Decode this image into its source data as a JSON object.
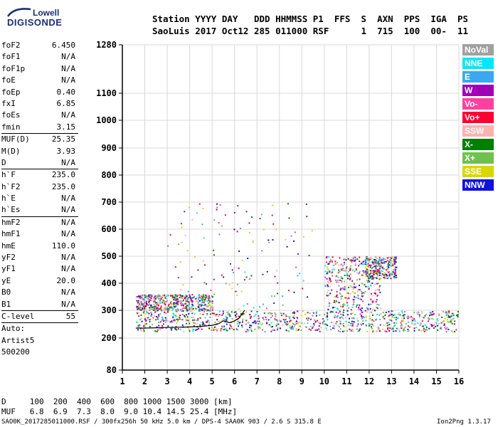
{
  "logo": {
    "line1": "Lowell",
    "line2": "DIGISONDE"
  },
  "header": {
    "line1": "Station YYYY DAY   DDD HHMMSS P1  FFS  S  AXN  PPS  IGA  PS",
    "line2": "SaoLuis 2017 Oct12 285 011000 RSF      1  715  100  00-  11"
  },
  "params": {
    "group1": [
      {
        "name": "foF2",
        "value": "6.450"
      },
      {
        "name": "foF1",
        "value": "N/A"
      },
      {
        "name": "foF1p",
        "value": "N/A"
      },
      {
        "name": "foE",
        "value": "N/A"
      },
      {
        "name": "foEp",
        "value": "0.40"
      },
      {
        "name": "fxI",
        "value": "6.85"
      },
      {
        "name": "foEs",
        "value": "N/A"
      },
      {
        "name": "fmin",
        "value": "3.15"
      }
    ],
    "group2": [
      {
        "name": "MUF(D)",
        "value": "25.35"
      },
      {
        "name": "M(D)",
        "value": "3.93"
      },
      {
        "name": "D",
        "value": "N/A"
      }
    ],
    "group3": [
      {
        "name": "h`F",
        "value": "235.0"
      },
      {
        "name": "h`F2",
        "value": "235.0"
      },
      {
        "name": "h`E",
        "value": "N/A"
      },
      {
        "name": "h`Es",
        "value": "N/A"
      }
    ],
    "group4": [
      {
        "name": "hmF2",
        "value": "N/A"
      },
      {
        "name": "hmF1",
        "value": "N/A"
      },
      {
        "name": "hmE",
        "value": "110.0"
      },
      {
        "name": "yF2",
        "value": "N/A"
      },
      {
        "name": "yF1",
        "value": "N/A"
      },
      {
        "name": "yE",
        "value": "20.0"
      },
      {
        "name": "B0",
        "value": "N/A"
      },
      {
        "name": "B1",
        "value": "N/A"
      }
    ],
    "group5": [
      {
        "name": "C-level",
        "value": "55"
      }
    ],
    "auto": [
      "Auto:",
      "Artist5",
      "500200"
    ]
  },
  "legend": [
    {
      "label": "NoVal",
      "color": "#a0a0a0"
    },
    {
      "label": "NNE",
      "color": "#00e8ff"
    },
    {
      "label": "E",
      "color": "#3aa8f0"
    },
    {
      "label": "W",
      "color": "#a000b8"
    },
    {
      "label": "Vo-",
      "color": "#ff40a0"
    },
    {
      "label": "Vo+",
      "color": "#ff0030"
    },
    {
      "label": "SSW",
      "color": "#ffb0b0"
    },
    {
      "label": "X-",
      "color": "#008000"
    },
    {
      "label": "X+",
      "color": "#70c050"
    },
    {
      "label": "SSE",
      "color": "#d8d800"
    },
    {
      "label": "NNW",
      "color": "#1010e0"
    }
  ],
  "footer": {
    "line1": "D     100  200  400  600  800 1000 1500 3000 [km]",
    "line2": "MUF   6.8  6.9  7.3  8.0  9.0 10.4 14.5 25.4 [MHz]",
    "left": "SAO0K_2017285011000.RSF / 300fx256h 50 kHz 5.0 km / DPS-4 SAA0K 903 / 2.6 S 315.8 E",
    "right": "Ion2Png 1.3.17"
  },
  "chart_data": {
    "type": "scatter",
    "x_ticks": [
      "1",
      "2",
      "3",
      "4",
      "5",
      "6",
      "7",
      "8",
      "9",
      "10",
      "11",
      "12",
      "13",
      "14",
      "15",
      "16"
    ],
    "y_ticks": [
      "80",
      "200",
      "300",
      "400",
      "500",
      "600",
      "700",
      "800",
      "900",
      "1000",
      "1100",
      "1280"
    ],
    "xlim": [
      1,
      16
    ],
    "ylim": [
      80,
      1280
    ],
    "y_scale": "ionogram-virtual-height",
    "grid": true,
    "trace_color": "#000000",
    "trace": {
      "x": [
        1.6,
        2.0,
        2.5,
        3.0,
        3.5,
        4.0,
        4.5,
        5.0,
        5.3,
        5.5,
        5.8,
        6.0,
        6.2,
        6.45
      ],
      "y": [
        236,
        236,
        237,
        238,
        239,
        240,
        242,
        246,
        252,
        262,
        255,
        262,
        272,
        300
      ]
    },
    "echo_regions": [
      {
        "x": [
          1.6,
          16.0
        ],
        "y": [
          225,
          300
        ],
        "density": 1.0
      },
      {
        "x": [
          1.6,
          5.0
        ],
        "y": [
          300,
          360
        ],
        "density": 0.6
      },
      {
        "x": [
          10.0,
          12.5
        ],
        "y": [
          300,
          500
        ],
        "density": 0.4
      },
      {
        "x": [
          11.8,
          13.2
        ],
        "y": [
          420,
          500
        ],
        "density": 0.3
      },
      {
        "x": [
          3.0,
          9.5
        ],
        "y": [
          300,
          700
        ],
        "density": 0.15
      }
    ],
    "echo_colors": [
      "#ff0030",
      "#ff40a0",
      "#a000b8",
      "#d8d800",
      "#00e8ff",
      "#3aa8f0",
      "#ffb0b0",
      "#008000",
      "#70c050",
      "#1010e0"
    ]
  }
}
